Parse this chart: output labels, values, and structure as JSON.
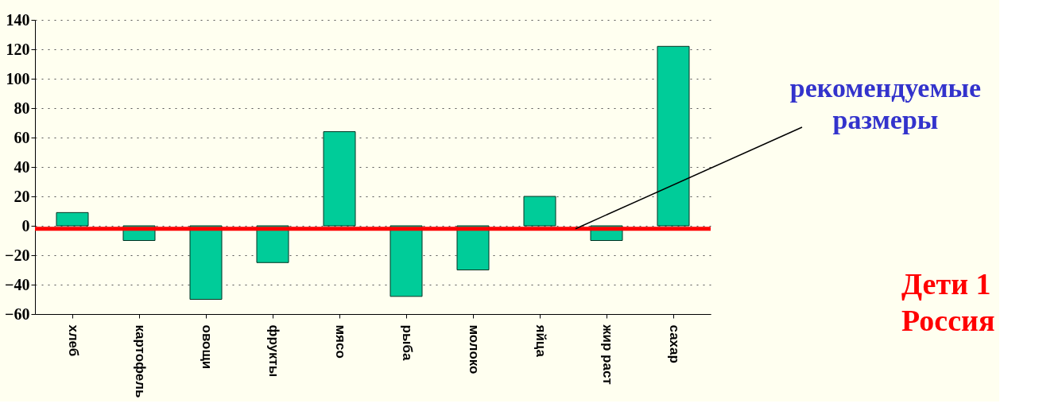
{
  "chart_data": {
    "type": "bar",
    "categories": [
      "хлеб",
      "картофель",
      "овощи",
      "фрукты",
      "мясо",
      "рыба",
      "молоко",
      "яйца",
      "жир раст",
      "сахар"
    ],
    "values": [
      9,
      -10,
      -50,
      -25,
      64,
      -48,
      -30,
      20,
      -10,
      122
    ],
    "color": "#00cc99",
    "ylim": [
      -60,
      140
    ],
    "yticks": [
      -60,
      -40,
      -20,
      0,
      20,
      40,
      60,
      80,
      100,
      120,
      140
    ],
    "grid": "y",
    "ref_lines": [
      {
        "axis": "y",
        "value": -2,
        "label": "рекомендуемые размеры",
        "color": "#ff0000"
      }
    ],
    "annotations": [
      "Дети 1",
      "Россия"
    ]
  }
}
